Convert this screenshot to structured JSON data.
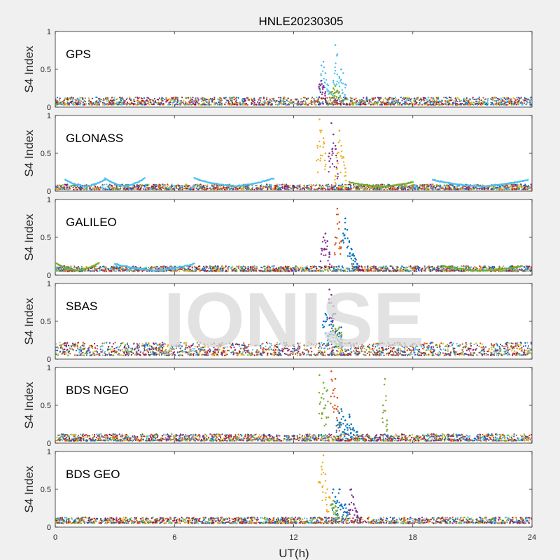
{
  "chart_data": {
    "type": "scatter",
    "title": "HNLE20230305",
    "xlabel": "UT(h)",
    "ylabel": "S4 Index",
    "xlim": [
      0,
      24
    ],
    "ylim": [
      0,
      1
    ],
    "xticks": [
      "0",
      "6",
      "12",
      "18",
      "24"
    ],
    "yticks": [
      "0",
      "0.5",
      "1"
    ],
    "grid": false,
    "watermark": "IONISE",
    "colors": [
      "#0072BD",
      "#D95319",
      "#EDB120",
      "#7E2F8E",
      "#77AC30",
      "#4DBEEE",
      "#A2142F"
    ],
    "panels": [
      {
        "label": "GPS",
        "baseline": [
          0.03,
          0.13
        ],
        "events": [
          {
            "series_color": 5,
            "x": [
              13.3,
              13.4,
              13.5,
              13.6,
              13.7,
              13.8,
              14.0,
              14.1,
              14.2,
              14.3,
              14.4,
              14.5,
              14.6
            ],
            "y": [
              0.25,
              0.55,
              0.6,
              0.45,
              0.3,
              0.2,
              0.35,
              0.82,
              0.7,
              0.4,
              0.5,
              0.45,
              0.3
            ]
          },
          {
            "series_color": 3,
            "x": [
              13.3,
              13.4,
              13.5,
              13.6
            ],
            "y": [
              0.3,
              0.35,
              0.28,
              0.2
            ]
          },
          {
            "series_color": 4,
            "x": [
              13.9,
              14.0,
              14.1,
              14.2,
              14.3
            ],
            "y": [
              0.2,
              0.25,
              0.28,
              0.22,
              0.2
            ]
          }
        ]
      },
      {
        "label": "GLONASS",
        "baseline": [
          0.02,
          0.09
        ],
        "arcs": [
          {
            "series_color": 5,
            "x": [
              0.5,
              2.5
            ],
            "peak": 0.15
          },
          {
            "series_color": 5,
            "x": [
              2.5,
              4.5
            ],
            "peak": 0.17
          },
          {
            "series_color": 5,
            "x": [
              7.0,
              11.0
            ],
            "peak": 0.17
          },
          {
            "series_color": 4,
            "x": [
              14.8,
              18.0
            ],
            "peak": 0.12
          },
          {
            "series_color": 5,
            "x": [
              19.0,
              23.8
            ],
            "peak": 0.15
          }
        ],
        "events": [
          {
            "series_color": 2,
            "x": [
              13.2,
              13.3,
              13.4,
              13.5,
              13.6,
              14.1,
              14.2,
              14.3,
              14.4,
              14.5,
              14.6
            ],
            "y": [
              0.6,
              0.95,
              0.8,
              0.7,
              0.5,
              0.2,
              0.5,
              0.8,
              0.6,
              0.45,
              0.3
            ]
          },
          {
            "series_color": 3,
            "x": [
              13.8,
              13.9,
              14.0,
              14.1,
              14.2
            ],
            "y": [
              0.5,
              0.9,
              0.75,
              0.6,
              0.4
            ]
          }
        ]
      },
      {
        "label": "GALILEO",
        "baseline": [
          0.05,
          0.12
        ],
        "arcs": [
          {
            "series_color": 4,
            "x": [
              0.0,
              2.2
            ],
            "peak": 0.16
          },
          {
            "series_color": 5,
            "x": [
              3.0,
              7.0
            ],
            "peak": 0.15
          },
          {
            "series_color": 4,
            "x": [
              19.5,
              23.5
            ],
            "peak": 0.12
          }
        ],
        "events": [
          {
            "series_color": 3,
            "x": [
              13.4,
              13.5,
              13.6,
              13.7,
              13.8
            ],
            "y": [
              0.35,
              0.5,
              0.55,
              0.45,
              0.3
            ]
          },
          {
            "series_color": 1,
            "x": [
              14.1,
              14.2,
              14.3,
              14.4
            ],
            "y": [
              0.5,
              0.88,
              0.7,
              0.45
            ]
          },
          {
            "series_color": 0,
            "x": [
              14.5,
              14.6,
              14.7,
              14.8,
              14.9,
              15.0,
              15.1,
              15.2
            ],
            "y": [
              0.55,
              0.75,
              0.6,
              0.45,
              0.35,
              0.28,
              0.22,
              0.15
            ]
          }
        ]
      },
      {
        "label": "SBAS",
        "baseline": [
          0.05,
          0.22
        ],
        "events": [
          {
            "series_color": 3,
            "x": [
              13.8,
              13.9,
              14.0,
              14.1
            ],
            "y": [
              0.92,
              0.85,
              0.7,
              0.6
            ]
          },
          {
            "series_color": 0,
            "x": [
              13.5,
              13.6,
              13.7,
              13.8,
              13.9,
              14.0,
              14.1,
              14.2,
              14.3,
              14.4
            ],
            "y": [
              0.5,
              0.6,
              0.55,
              0.45,
              0.5,
              0.6,
              0.4,
              0.38,
              0.35,
              0.42
            ]
          },
          {
            "series_color": 4,
            "x": [
              14.0,
              14.1,
              14.2,
              14.3,
              14.4
            ],
            "y": [
              0.45,
              0.4,
              0.38,
              0.42,
              0.35
            ]
          }
        ]
      },
      {
        "label": "BDS NGEO",
        "baseline": [
          0.03,
          0.12
        ],
        "events": [
          {
            "series_color": 4,
            "x": [
              13.3,
              13.4,
              13.5,
              13.6,
              13.7,
              16.5,
              16.6,
              16.7
            ],
            "y": [
              0.9,
              0.6,
              0.8,
              0.5,
              0.7,
              0.5,
              0.85,
              0.3
            ]
          },
          {
            "series_color": 1,
            "x": [
              13.9,
              14.0,
              14.1,
              14.2,
              14.3
            ],
            "y": [
              0.95,
              0.7,
              0.85,
              0.6,
              0.4
            ]
          },
          {
            "series_color": 0,
            "x": [
              14.2,
              14.3,
              14.4,
              14.5,
              14.6,
              14.7,
              14.8,
              14.9,
              15.0,
              15.2
            ],
            "y": [
              0.3,
              0.4,
              0.45,
              0.35,
              0.3,
              0.25,
              0.38,
              0.25,
              0.2,
              0.15
            ]
          }
        ]
      },
      {
        "label": "BDS GEO",
        "baseline": [
          0.05,
          0.13
        ],
        "events": [
          {
            "series_color": 2,
            "x": [
              13.3,
              13.4,
              13.5,
              13.6,
              13.7,
              13.8
            ],
            "y": [
              0.6,
              0.8,
              0.95,
              0.7,
              0.5,
              0.4
            ]
          },
          {
            "series_color": 0,
            "x": [
              14.0,
              14.1,
              14.2,
              14.3,
              14.4,
              14.5,
              14.6,
              14.7
            ],
            "y": [
              0.5,
              0.4,
              0.35,
              0.5,
              0.3,
              0.25,
              0.3,
              0.2
            ]
          },
          {
            "series_color": 3,
            "x": [
              14.8,
              14.9,
              15.0,
              15.1,
              15.2
            ],
            "y": [
              0.3,
              0.5,
              0.4,
              0.25,
              0.2
            ]
          },
          {
            "series_color": 4,
            "x": [
              13.9,
              14.0,
              14.1,
              14.2
            ],
            "y": [
              0.3,
              0.35,
              0.28,
              0.22
            ]
          }
        ]
      }
    ]
  }
}
